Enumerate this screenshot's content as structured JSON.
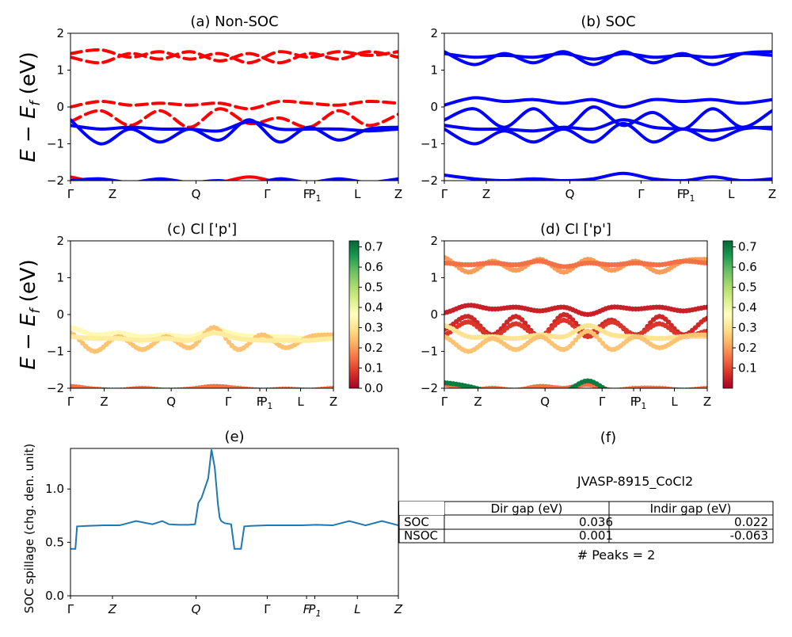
{
  "chart_data": [
    {
      "id": "a",
      "type": "line",
      "title": "(a) Non-SOC",
      "ylabel": "E − E",
      "ylabel_sub": "f",
      "ylabel_unit": " (eV)",
      "ylim": [
        -2,
        2
      ],
      "yticks": [
        "2",
        "1",
        "0",
        "−1",
        "−2"
      ],
      "xticks": [
        "Γ",
        "Z",
        "Q",
        "Γ",
        "F",
        "P1",
        "L",
        "Z"
      ],
      "series": [
        {
          "color": "#ff0000",
          "dash": true,
          "values": [
            1.45,
            1.55,
            1.35,
            1.5,
            1.3,
            1.45,
            1.2,
            1.5,
            1.35,
            1.5,
            1.4,
            1.5
          ]
        },
        {
          "color": "#ff0000",
          "dash": true,
          "values": [
            1.35,
            1.2,
            1.45,
            1.3,
            1.5,
            1.25,
            1.45,
            1.2,
            1.45,
            1.3,
            1.5,
            1.35
          ]
        },
        {
          "color": "#ff0000",
          "dash": true,
          "values": [
            0.0,
            0.15,
            0.05,
            0.1,
            0.05,
            0.1,
            -0.05,
            0.15,
            0.1,
            0.05,
            0.15,
            0.1
          ]
        },
        {
          "color": "#ff0000",
          "dash": true,
          "values": [
            -0.4,
            -0.1,
            -0.5,
            -0.1,
            -0.55,
            -0.05,
            -0.45,
            -0.3,
            -0.55,
            -0.1,
            -0.5,
            -0.2
          ]
        },
        {
          "color": "#0000ff",
          "dash": false,
          "values": [
            -0.35,
            -1.0,
            -0.6,
            -0.95,
            -0.6,
            -0.9,
            -0.35,
            -0.95,
            -0.55,
            -0.9,
            -0.6,
            -0.55
          ]
        },
        {
          "color": "#0000ff",
          "dash": false,
          "values": [
            -0.5,
            -0.6,
            -0.55,
            -0.6,
            -0.6,
            -0.65,
            -0.4,
            -0.6,
            -0.6,
            -0.6,
            -0.65,
            -0.6
          ]
        },
        {
          "color": "#ff0000",
          "dash": false,
          "values": [
            -1.9,
            -2.05,
            -2.1,
            -2.05,
            -2.1,
            -2.05,
            -1.9,
            -2.05,
            -2.1,
            -2.05,
            -2.1,
            -2.05
          ]
        },
        {
          "color": "#0000ff",
          "dash": false,
          "values": [
            -2.0,
            -1.95,
            -2.05,
            -1.95,
            -2.05,
            -2.0,
            -2.1,
            -1.95,
            -2.05,
            -1.95,
            -2.05,
            -1.95
          ]
        }
      ]
    },
    {
      "id": "b",
      "type": "line",
      "title": "(b) SOC",
      "ylim": [
        -2,
        2
      ],
      "yticks": [
        "2",
        "1",
        "0",
        "−1",
        "−2"
      ],
      "xticks": [
        "Γ",
        "Z",
        "Q",
        "Γ",
        "F",
        "P1",
        "L",
        "Z"
      ],
      "series": [
        {
          "color": "#0000ff",
          "dash": false,
          "values": [
            1.5,
            1.15,
            1.45,
            1.2,
            1.5,
            1.15,
            1.5,
            1.2,
            1.45,
            1.15,
            1.45,
            1.5
          ]
        },
        {
          "color": "#0000ff",
          "dash": false,
          "values": [
            1.45,
            1.35,
            1.4,
            1.35,
            1.45,
            1.3,
            1.45,
            1.35,
            1.4,
            1.35,
            1.45,
            1.4
          ]
        },
        {
          "color": "#0000ff",
          "dash": false,
          "values": [
            0.05,
            0.25,
            0.15,
            0.2,
            0.1,
            0.2,
            0.0,
            0.2,
            0.15,
            0.2,
            0.1,
            0.2
          ]
        },
        {
          "color": "#0000ff",
          "dash": false,
          "values": [
            -0.35,
            -0.05,
            -0.55,
            -0.05,
            -0.6,
            0.0,
            -0.5,
            -0.15,
            -0.6,
            -0.05,
            -0.55,
            -0.1
          ]
        },
        {
          "color": "#0000ff",
          "dash": false,
          "values": [
            -0.5,
            -0.6,
            -0.6,
            -0.65,
            -0.55,
            -0.6,
            -0.35,
            -0.55,
            -0.6,
            -0.65,
            -0.55,
            -0.6
          ]
        },
        {
          "color": "#0000ff",
          "dash": false,
          "values": [
            -0.6,
            -1.0,
            -0.65,
            -0.95,
            -0.6,
            -0.95,
            -0.45,
            -0.95,
            -0.6,
            -0.9,
            -0.6,
            -0.55
          ]
        },
        {
          "color": "#0000ff",
          "dash": false,
          "values": [
            -1.85,
            -1.95,
            -2.0,
            -1.95,
            -2.0,
            -1.95,
            -1.8,
            -1.95,
            -2.0,
            -1.9,
            -2.0,
            -1.95
          ]
        }
      ]
    },
    {
      "id": "c",
      "type": "scatter",
      "title": "(c)  Cl ['p']",
      "ylabel": "E − E",
      "ylabel_sub": "f",
      "ylabel_unit": " (eV)",
      "ylim": [
        -2,
        2
      ],
      "yticks": [
        "2",
        "1",
        "0",
        "−1",
        "−2"
      ],
      "xticks": [
        "Γ",
        "Z",
        "Q",
        "Γ",
        "F",
        "P1",
        "L",
        "Z"
      ],
      "colorbar": {
        "min": 0.0,
        "max": 0.73,
        "ticks": [
          "0.7",
          "0.6",
          "0.5",
          "0.4",
          "0.3",
          "0.2",
          "0.1",
          "0.0"
        ],
        "colormap": "RdYlGn"
      },
      "series": [
        {
          "weight": 0.35,
          "values": [
            -0.35,
            -0.55,
            -0.5,
            -0.6,
            -0.55,
            -0.6,
            -0.4,
            -0.55,
            -0.6,
            -0.6,
            -0.65,
            -0.55
          ]
        },
        {
          "weight": 0.25,
          "values": [
            -0.5,
            -1.0,
            -0.6,
            -0.95,
            -0.6,
            -0.9,
            -0.35,
            -0.95,
            -0.55,
            -0.9,
            -0.6,
            -0.55
          ]
        },
        {
          "weight": 0.32,
          "values": [
            -0.6,
            -0.65,
            -0.65,
            -0.7,
            -0.65,
            -0.7,
            -0.5,
            -0.65,
            -0.7,
            -0.7,
            -0.7,
            -0.65
          ]
        },
        {
          "weight": 0.15,
          "values": [
            -1.95,
            -2.02,
            -2.05,
            -2.0,
            -2.05,
            -2.02,
            -1.95,
            -2.0,
            -2.05,
            -2.02,
            -2.05,
            -2.0
          ]
        }
      ]
    },
    {
      "id": "d",
      "type": "scatter",
      "title": "(d) Cl ['p']",
      "ylim": [
        -2,
        2
      ],
      "yticks": [
        "2",
        "1",
        "0",
        "−1",
        "−2"
      ],
      "xticks": [
        "Γ",
        "Z",
        "Q",
        "Γ",
        "F",
        "P1",
        "L",
        "Z"
      ],
      "colorbar": {
        "min": 0.0,
        "max": 0.73,
        "ticks": [
          "0.7",
          "0.6",
          "0.5",
          "0.4",
          "0.3",
          "0.2",
          "0.1"
        ],
        "colormap": "RdYlGn"
      },
      "series": [
        {
          "weight": 0.2,
          "values": [
            1.55,
            1.15,
            1.45,
            1.2,
            1.5,
            1.15,
            1.5,
            1.2,
            1.45,
            1.15,
            1.45,
            1.5
          ]
        },
        {
          "weight": 0.15,
          "values": [
            1.4,
            1.35,
            1.4,
            1.35,
            1.45,
            1.3,
            1.4,
            1.35,
            1.4,
            1.35,
            1.45,
            1.4
          ]
        },
        {
          "weight": 0.05,
          "values": [
            0.05,
            0.25,
            0.15,
            0.2,
            0.1,
            0.2,
            0.0,
            0.2,
            0.15,
            0.2,
            0.1,
            0.2
          ]
        },
        {
          "weight": 0.06,
          "values": [
            -0.4,
            -0.05,
            -0.55,
            -0.05,
            -0.6,
            0.0,
            -0.5,
            -0.15,
            -0.6,
            -0.05,
            -0.55,
            -0.1
          ]
        },
        {
          "weight": 0.08,
          "values": [
            -0.55,
            -0.2,
            -0.6,
            -0.25,
            -0.6,
            -0.15,
            -0.6,
            -0.2,
            -0.55,
            -0.25,
            -0.6,
            -0.45
          ]
        },
        {
          "weight": 0.3,
          "values": [
            -0.3,
            -0.6,
            -0.6,
            -0.65,
            -0.55,
            -0.6,
            -0.3,
            -0.55,
            -0.6,
            -0.65,
            -0.6,
            -0.6
          ]
        },
        {
          "weight": 0.25,
          "values": [
            -0.6,
            -1.0,
            -0.65,
            -0.95,
            -0.6,
            -0.95,
            -0.45,
            -0.95,
            -0.6,
            -0.9,
            -0.6,
            -0.55
          ]
        },
        {
          "weight": 0.15,
          "values": [
            -1.9,
            -2.05,
            -2.0,
            -2.05,
            -1.95,
            -2.0,
            -1.9,
            -2.05,
            -2.0,
            -2.0,
            -2.05,
            -2.0
          ]
        },
        {
          "weight": 0.7,
          "values": [
            -1.85,
            -1.95,
            -2.1,
            -2.1,
            -2.1,
            -2.1,
            -1.8,
            -2.1,
            -2.1,
            -2.1,
            -2.1,
            -2.1
          ]
        }
      ]
    },
    {
      "id": "e",
      "type": "line",
      "title": "(e)",
      "ylabel": "SOC spillage (chg. den. unit)",
      "ylim": [
        0,
        1.38
      ],
      "yticks": [
        "0.0",
        "0.5",
        "1.0"
      ],
      "xticks": [
        "Γ",
        "Z",
        "Q",
        "Γ",
        "F",
        "P1",
        "L",
        "Z"
      ],
      "x": [
        0,
        0.015,
        0.02,
        0.05,
        0.1,
        0.15,
        0.2,
        0.25,
        0.28,
        0.3,
        0.33,
        0.36,
        0.38,
        0.39,
        0.4,
        0.4,
        0.42,
        0.43,
        0.44,
        0.45,
        0.455,
        0.46,
        0.47,
        0.49,
        0.5,
        0.52,
        0.53,
        0.55,
        0.6,
        0.65,
        0.7,
        0.75,
        0.8,
        0.85,
        0.9,
        0.95,
        1.0
      ],
      "y": [
        0.44,
        0.44,
        0.65,
        0.655,
        0.66,
        0.66,
        0.7,
        0.67,
        0.7,
        0.67,
        0.665,
        0.665,
        0.67,
        0.87,
        0.92,
        0.92,
        1.1,
        1.37,
        1.2,
        0.85,
        0.73,
        0.7,
        0.68,
        0.67,
        0.44,
        0.44,
        0.65,
        0.655,
        0.66,
        0.66,
        0.66,
        0.665,
        0.66,
        0.7,
        0.66,
        0.7,
        0.66
      ],
      "color": "#1f77b4"
    }
  ],
  "info": {
    "title": "(f)",
    "material": "JVASP-8915_CoCl2",
    "headers": [
      "Dir gap (eV)",
      "Indir gap (eV)"
    ],
    "rows": [
      {
        "label": "SOC",
        "dir": "0.036",
        "indir": "0.022"
      },
      {
        "label": "NSOC",
        "dir": "0.001",
        "indir": "-0.063"
      }
    ],
    "peaks": "# Peaks = 2"
  }
}
